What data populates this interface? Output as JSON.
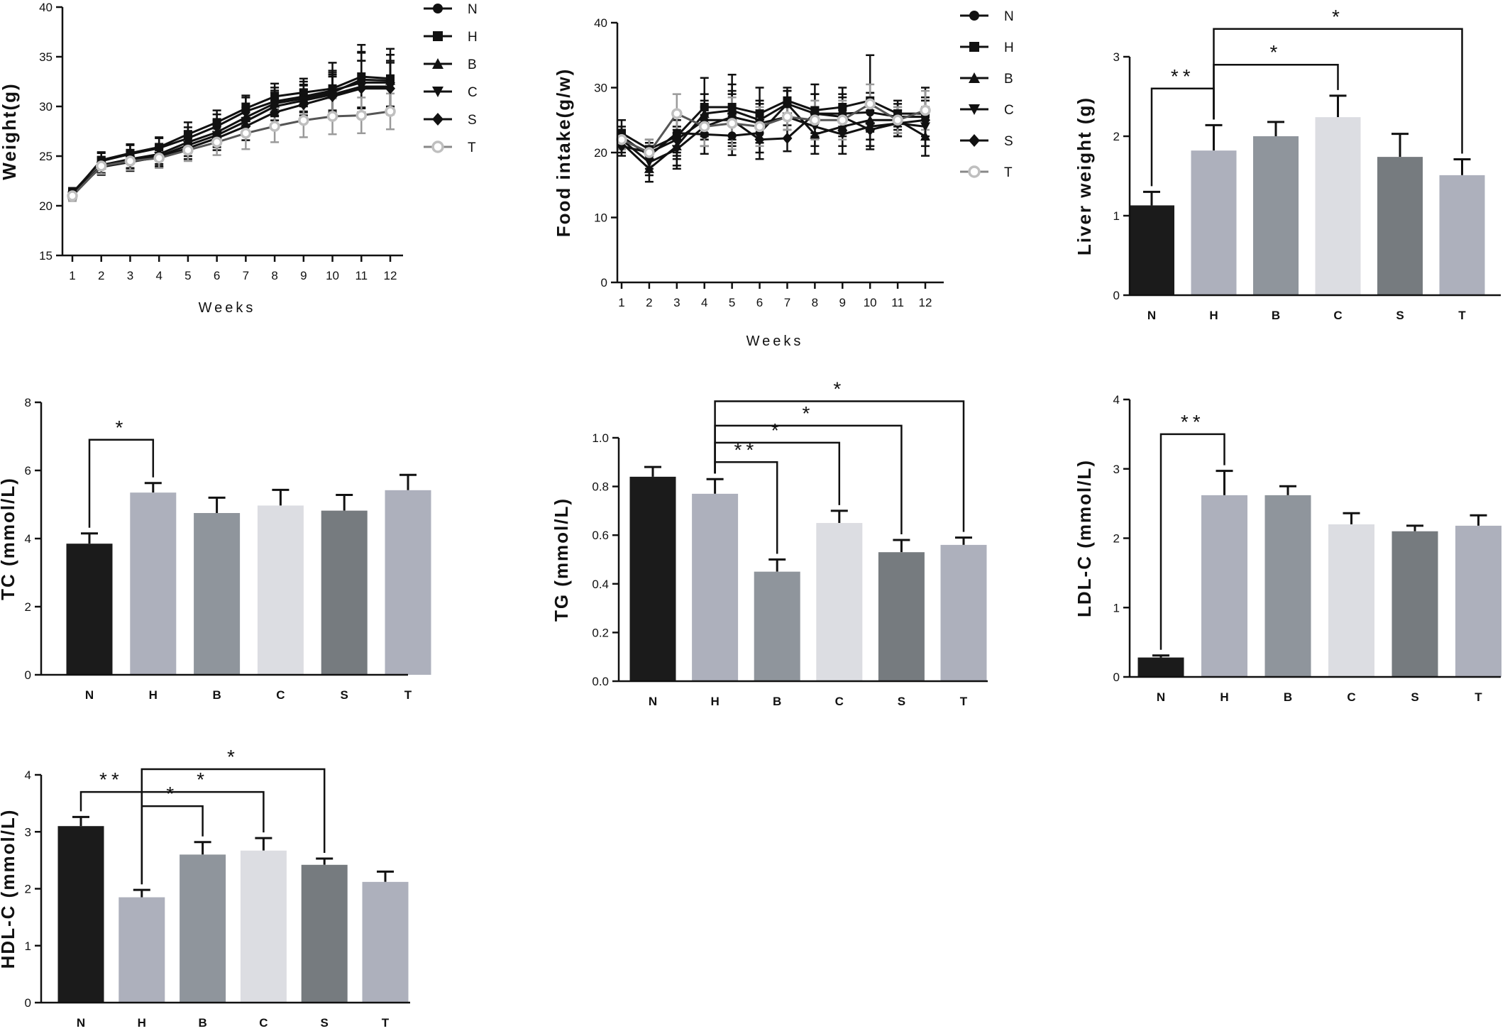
{
  "colors": {
    "N": "#1b1b1b",
    "H": "#adb0bc",
    "B": "#8f959c",
    "C": "#dcdde2",
    "S": "#767b7f",
    "T": "#adb0bc",
    "T_marker": "#bfbfbf",
    "line": "#111111"
  },
  "chart_data": [
    {
      "id": "weight",
      "type": "line",
      "xlabel": "Weeks",
      "ylabel": "Weight(g)",
      "ylim": [
        15,
        40
      ],
      "yticks": [
        15,
        20,
        25,
        30,
        35,
        40
      ],
      "x": [
        1,
        2,
        3,
        4,
        5,
        6,
        7,
        8,
        9,
        10,
        11,
        12
      ],
      "legend": [
        "N",
        "H",
        "B",
        "C",
        "S",
        "T"
      ],
      "series": [
        {
          "name": "N",
          "marker": "circle",
          "values": [
            21.3,
            24.5,
            25.2,
            25.8,
            26.8,
            28.0,
            29.5,
            30.5,
            31.0,
            31.6,
            32.4,
            32.4
          ],
          "err": [
            0.5,
            0.8,
            0.9,
            1.0,
            1.1,
            1.2,
            1.4,
            1.4,
            1.5,
            2.0,
            3.0,
            2.8
          ]
        },
        {
          "name": "H",
          "marker": "square",
          "values": [
            21.2,
            24.6,
            25.3,
            25.9,
            27.2,
            28.4,
            29.8,
            31.0,
            31.4,
            31.8,
            33.0,
            32.8
          ],
          "err": [
            0.5,
            0.8,
            0.9,
            1.0,
            1.2,
            1.2,
            1.3,
            1.3,
            1.4,
            2.6,
            3.2,
            3.0
          ]
        },
        {
          "name": "B",
          "marker": "triangle",
          "values": [
            21.1,
            24.1,
            24.7,
            25.2,
            26.4,
            27.4,
            28.9,
            30.3,
            30.8,
            31.4,
            32.7,
            32.6
          ],
          "err": [
            0.5,
            0.8,
            0.9,
            1.0,
            1.1,
            1.2,
            1.4,
            1.3,
            1.4,
            2.0,
            2.8,
            2.6
          ]
        },
        {
          "name": "C",
          "marker": "triangle-down",
          "values": [
            21.0,
            24.0,
            24.6,
            25.0,
            26.1,
            27.1,
            28.5,
            30.0,
            30.6,
            31.2,
            32.0,
            32.0
          ],
          "err": [
            0.5,
            0.8,
            0.9,
            1.0,
            1.1,
            1.2,
            1.4,
            1.4,
            1.5,
            2.0,
            2.6,
            2.6
          ]
        },
        {
          "name": "S",
          "marker": "diamond",
          "values": [
            21.2,
            23.9,
            24.4,
            24.9,
            25.8,
            26.8,
            28.0,
            29.4,
            30.2,
            31.0,
            31.8,
            31.8
          ],
          "err": [
            0.5,
            0.8,
            0.9,
            1.0,
            1.1,
            1.2,
            1.4,
            1.4,
            1.5,
            2.0,
            2.8,
            2.6
          ]
        },
        {
          "name": "T",
          "marker": "open-circle",
          "values": [
            21.0,
            24.0,
            24.5,
            24.8,
            25.6,
            26.4,
            27.3,
            28.0,
            28.6,
            29.0,
            29.1,
            29.5
          ],
          "err": [
            0.5,
            0.8,
            0.9,
            1.0,
            1.1,
            1.3,
            1.6,
            1.6,
            1.7,
            1.8,
            1.8,
            1.8
          ]
        }
      ]
    },
    {
      "id": "food",
      "type": "line",
      "xlabel": "Weeks",
      "ylabel": "Food intake(g/w)",
      "ylim": [
        0,
        40
      ],
      "yticks": [
        0,
        10,
        20,
        30,
        40
      ],
      "x": [
        1,
        2,
        3,
        4,
        5,
        6,
        7,
        8,
        9,
        10,
        11,
        12
      ],
      "legend": [
        "N",
        "H",
        "B",
        "C",
        "S",
        "T"
      ],
      "series": [
        {
          "name": "N",
          "marker": "circle",
          "values": [
            22.5,
            19.5,
            23.0,
            22.8,
            22.6,
            23.0,
            27.5,
            26.0,
            26.0,
            26.2,
            25.5,
            25.5
          ],
          "err": [
            1.5,
            2.0,
            3.0,
            3.0,
            3.0,
            3.0,
            2.0,
            3.0,
            3.0,
            3.0,
            2.0,
            3.0
          ]
        },
        {
          "name": "H",
          "marker": "square",
          "values": [
            23.0,
            20.5,
            22.5,
            27.0,
            27.0,
            26.0,
            28.0,
            26.5,
            27.0,
            28.0,
            26.0,
            26.0
          ],
          "err": [
            2.0,
            1.5,
            3.0,
            4.5,
            5.0,
            4.0,
            2.0,
            4.0,
            3.0,
            7.0,
            2.0,
            4.0
          ]
        },
        {
          "name": "B",
          "marker": "triangle",
          "values": [
            21.5,
            17.5,
            21.0,
            26.0,
            26.5,
            25.0,
            27.5,
            22.8,
            24.0,
            25.0,
            25.0,
            22.5
          ],
          "err": [
            1.5,
            2.0,
            3.0,
            3.0,
            4.0,
            3.0,
            2.0,
            3.0,
            3.0,
            3.0,
            2.0,
            3.0
          ]
        },
        {
          "name": "C",
          "marker": "triangle-down",
          "values": [
            22.0,
            18.5,
            20.5,
            24.0,
            25.5,
            24.5,
            25.5,
            24.0,
            22.8,
            24.0,
            24.5,
            24.0
          ],
          "err": [
            1.5,
            2.0,
            3.0,
            3.0,
            4.0,
            3.0,
            2.0,
            3.0,
            3.0,
            3.0,
            2.0,
            3.0
          ]
        },
        {
          "name": "S",
          "marker": "diamond",
          "values": [
            21.0,
            20.0,
            22.0,
            25.0,
            25.0,
            22.0,
            22.2,
            26.0,
            25.5,
            23.5,
            24.5,
            25.0
          ],
          "err": [
            1.5,
            2.0,
            3.0,
            3.0,
            4.0,
            3.0,
            2.0,
            3.0,
            3.0,
            3.0,
            2.0,
            3.0
          ]
        },
        {
          "name": "T",
          "marker": "open-circle",
          "values": [
            22.0,
            20.0,
            26.0,
            24.0,
            24.5,
            24.0,
            25.5,
            25.0,
            25.0,
            27.5,
            25.0,
            26.5
          ],
          "err": [
            1.5,
            2.0,
            3.0,
            3.0,
            4.0,
            3.0,
            2.0,
            3.0,
            3.0,
            3.0,
            2.0,
            3.0
          ]
        }
      ]
    },
    {
      "id": "liver",
      "type": "bar",
      "ylabel": "Liver weight (g)",
      "ylim": [
        0,
        3
      ],
      "yticks": [
        0,
        1,
        2,
        3
      ],
      "categories": [
        "N",
        "H",
        "B",
        "C",
        "S",
        "T"
      ],
      "values": [
        1.13,
        1.82,
        2.0,
        2.24,
        1.74,
        1.51
      ],
      "err": [
        0.17,
        0.32,
        0.18,
        0.27,
        0.29,
        0.2
      ],
      "significance": [
        {
          "from": 0,
          "to": 1,
          "label": "**",
          "y": 2.6
        },
        {
          "from": 1,
          "to": 3,
          "label": "*",
          "y": 2.9
        },
        {
          "from": 1,
          "to": 5,
          "label": "*",
          "y": 3.35
        }
      ]
    },
    {
      "id": "tc",
      "type": "bar",
      "ylabel": "TC  (mmol/L)",
      "ylim": [
        0,
        8
      ],
      "yticks": [
        0,
        2,
        4,
        6,
        8
      ],
      "categories": [
        "N",
        "H",
        "B",
        "C",
        "S",
        "T"
      ],
      "values": [
        3.85,
        5.35,
        4.75,
        4.97,
        4.82,
        5.42
      ],
      "err": [
        0.3,
        0.28,
        0.45,
        0.46,
        0.46,
        0.45
      ],
      "significance": [
        {
          "from": 0,
          "to": 1,
          "label": "*",
          "y": 6.9
        }
      ]
    },
    {
      "id": "tg",
      "type": "bar",
      "ylabel": "TG  (mmol/L)",
      "ylim": [
        0,
        1.0
      ],
      "yticks": [
        0.0,
        0.2,
        0.4,
        0.6,
        0.8,
        1.0
      ],
      "categories": [
        "N",
        "H",
        "B",
        "C",
        "S",
        "T"
      ],
      "values": [
        0.84,
        0.77,
        0.45,
        0.65,
        0.53,
        0.56
      ],
      "err": [
        0.04,
        0.06,
        0.05,
        0.05,
        0.05,
        0.03
      ],
      "significance": [
        {
          "from": 1,
          "to": 2,
          "label": "**",
          "y": 0.9
        },
        {
          "from": 1,
          "to": 3,
          "label": "*",
          "y": 0.98
        },
        {
          "from": 1,
          "to": 4,
          "label": "*",
          "y": 1.05
        },
        {
          "from": 1,
          "to": 5,
          "label": "*",
          "y": 1.15
        }
      ]
    },
    {
      "id": "ldl",
      "type": "bar",
      "ylabel": "LDL-C  (mmol/L)",
      "ylim": [
        0,
        4
      ],
      "yticks": [
        0,
        1,
        2,
        3,
        4
      ],
      "categories": [
        "N",
        "H",
        "B",
        "C",
        "S",
        "T"
      ],
      "values": [
        0.28,
        2.62,
        2.62,
        2.2,
        2.1,
        2.18
      ],
      "err": [
        0.03,
        0.35,
        0.13,
        0.16,
        0.08,
        0.15
      ],
      "significance": [
        {
          "from": 0,
          "to": 1,
          "label": "**",
          "y": 3.5
        }
      ]
    },
    {
      "id": "hdl",
      "type": "bar",
      "ylabel": "HDL-C  (mmol/L)",
      "ylim": [
        0,
        4
      ],
      "yticks": [
        0,
        1,
        2,
        3,
        4
      ],
      "categories": [
        "N",
        "H",
        "B",
        "C",
        "S",
        "T"
      ],
      "values": [
        3.1,
        1.85,
        2.6,
        2.67,
        2.42,
        2.12
      ],
      "err": [
        0.16,
        0.13,
        0.22,
        0.22,
        0.11,
        0.18
      ],
      "significance": [
        {
          "from": 0,
          "to": 1,
          "label": "**",
          "y": 3.7
        },
        {
          "from": 1,
          "to": 2,
          "label": "*",
          "y": 3.45
        },
        {
          "from": 1,
          "to": 3,
          "label": "*",
          "y": 3.7
        },
        {
          "from": 1,
          "to": 4,
          "label": "*",
          "y": 4.1
        }
      ]
    }
  ]
}
